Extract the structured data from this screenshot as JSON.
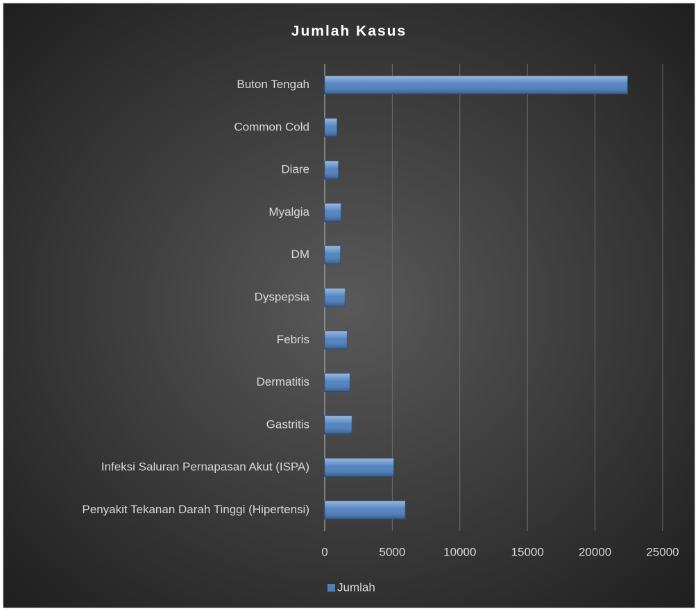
{
  "chart_data": {
    "type": "bar",
    "orientation": "horizontal",
    "title": "Jumlah Kasus",
    "categories": [
      "Buton Tengah",
      "Common Cold",
      "Diare",
      "Myalgia",
      "DM",
      "Dyspepsia",
      "Febris",
      "Dermatitis",
      "Gastritis",
      "Infeksi Saluran Pernapasan Akut (ISPA)",
      "Penyakit Tekanan Darah Tinggi (Hipertensi)"
    ],
    "series": [
      {
        "name": "Jumlah",
        "color": "#4a7ebf",
        "values": [
          22400,
          900,
          1000,
          1200,
          1150,
          1500,
          1650,
          1850,
          2000,
          5100,
          5950
        ]
      }
    ],
    "xlim": [
      0,
      25000
    ],
    "xticks": [
      0,
      5000,
      10000,
      15000,
      20000,
      25000
    ],
    "grid": true,
    "legend": "bottom"
  }
}
